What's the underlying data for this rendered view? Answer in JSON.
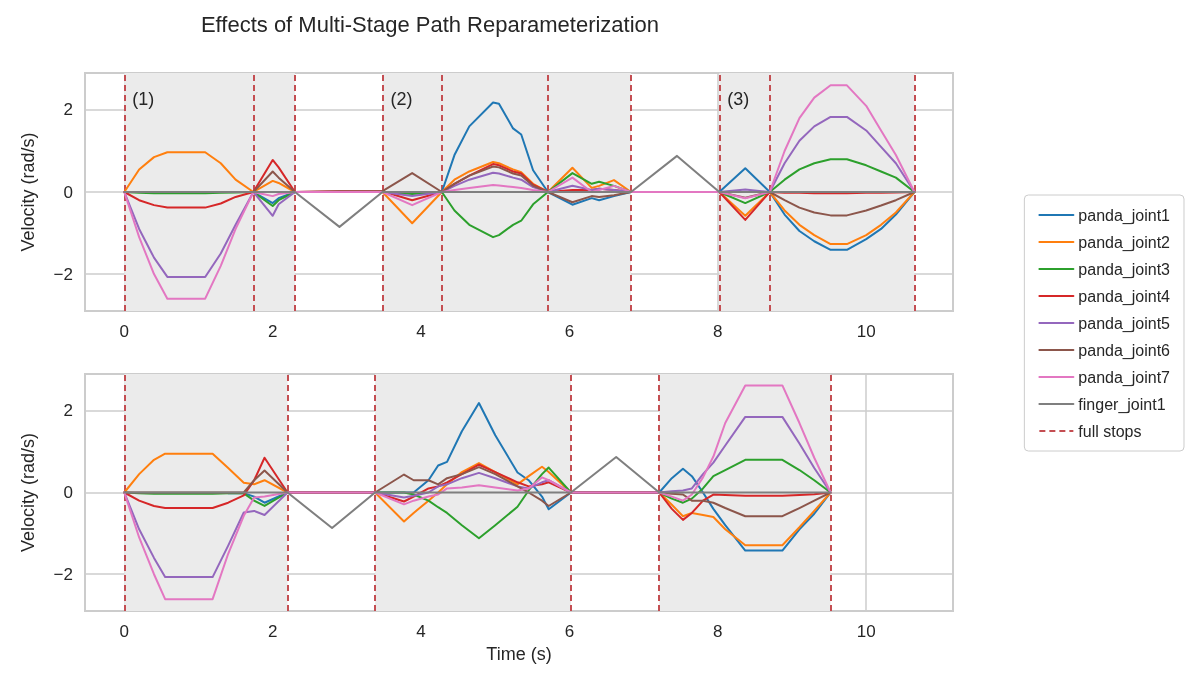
{
  "chart_data": [
    {
      "type": "line",
      "title": "Effects of Multi-Stage Path Reparameterization",
      "ylabel": "Velocity (rad/s)",
      "xlim": [
        -0.53,
        11.17
      ],
      "ylim": [
        -2.9,
        2.9
      ],
      "xticks": [
        0,
        2,
        4,
        6,
        8,
        10
      ],
      "yticks": [
        -2,
        0,
        2
      ],
      "grid": true,
      "legend": "right",
      "line_style": "solid",
      "annotations": [
        "(1)",
        "(2)",
        "(3)"
      ],
      "x": [
        0,
        0.2,
        0.4,
        0.58,
        1.09,
        1.3,
        1.5,
        1.74,
        2.0,
        2.08,
        2.3,
        2.9,
        3.48,
        3.88,
        4.28,
        4.45,
        4.65,
        4.97,
        5.05,
        5.24,
        5.35,
        5.51,
        5.71,
        6.04,
        6.3,
        6.4,
        6.6,
        6.83,
        7.45,
        8.02,
        8.37,
        8.7,
        8.9,
        9.1,
        9.3,
        9.52,
        9.74,
        10.0,
        10.2,
        10.4,
        10.65
      ],
      "series": [
        {
          "name": "panda_joint1",
          "color": "#1f77b4",
          "values": [
            null,
            null,
            null,
            null,
            null,
            null,
            null,
            0,
            -0.27,
            -0.15,
            0,
            0,
            0,
            0,
            0,
            0.9,
            1.6,
            2.18,
            2.15,
            1.55,
            1.4,
            0.53,
            0,
            -0.31,
            -0.15,
            -0.2,
            -0.1,
            0,
            0,
            0,
            0.58,
            0,
            -0.55,
            -0.95,
            -1.2,
            -1.41,
            -1.41,
            -1.15,
            -0.9,
            -0.55,
            0
          ]
        },
        {
          "name": "panda_joint2",
          "color": "#ff7f0e",
          "values": [
            0,
            0.55,
            0.85,
            0.97,
            0.97,
            0.7,
            0.3,
            0,
            0.27,
            0.22,
            0,
            0,
            0,
            -0.76,
            0,
            0.3,
            0.5,
            0.73,
            0.7,
            0.55,
            0.48,
            0.2,
            0,
            0.59,
            0.1,
            0.15,
            0.29,
            0,
            0,
            0,
            -0.58,
            0,
            -0.45,
            -0.8,
            -1.05,
            -1.27,
            -1.27,
            -1.05,
            -0.8,
            -0.5,
            0
          ]
        },
        {
          "name": "panda_joint3",
          "color": "#2ca02c",
          "values": [
            0,
            -0.02,
            -0.03,
            -0.03,
            -0.03,
            -0.02,
            -0.01,
            0,
            -0.34,
            -0.2,
            0,
            0,
            0,
            -0.05,
            0,
            -0.45,
            -0.8,
            -1.1,
            -1.05,
            -0.8,
            -0.7,
            -0.3,
            0,
            0.46,
            0.2,
            0.25,
            0.15,
            0,
            0,
            0,
            -0.27,
            0,
            0.3,
            0.55,
            0.7,
            0.8,
            0.8,
            0.65,
            0.5,
            0.35,
            0
          ]
        },
        {
          "name": "panda_joint4",
          "color": "#d62728",
          "values": [
            0,
            -0.2,
            -0.32,
            -0.38,
            -0.38,
            -0.28,
            -0.12,
            0,
            0.78,
            0.6,
            0,
            0.02,
            0.02,
            -0.2,
            0,
            0.2,
            0.4,
            0.68,
            0.65,
            0.5,
            0.45,
            0.18,
            0,
            0.05,
            0.05,
            0.08,
            0.05,
            0,
            0,
            0,
            -0.68,
            0,
            -0.02,
            -0.02,
            -0.03,
            -0.03,
            -0.03,
            -0.02,
            -0.02,
            -0.01,
            0
          ]
        },
        {
          "name": "panda_joint5",
          "color": "#9467bd",
          "values": [
            0,
            -0.9,
            -1.6,
            -2.07,
            -2.07,
            -1.5,
            -0.8,
            0,
            -0.58,
            -0.3,
            0,
            0,
            0,
            -0.1,
            0,
            0.15,
            0.3,
            0.47,
            0.45,
            0.35,
            0.3,
            0.12,
            0,
            0.15,
            0.05,
            0.08,
            0.05,
            0,
            0,
            0,
            0.06,
            0,
            0.7,
            1.25,
            1.6,
            1.83,
            1.83,
            1.5,
            1.1,
            0.7,
            0
          ]
        },
        {
          "name": "panda_joint6",
          "color": "#8c564b",
          "values": [
            0,
            0,
            0,
            0,
            0,
            0,
            0,
            0,
            0.5,
            0.35,
            0,
            0.02,
            0.02,
            0.46,
            0,
            0.2,
            0.4,
            0.62,
            0.6,
            0.45,
            0.4,
            0.15,
            0,
            -0.25,
            -0.1,
            -0.12,
            -0.08,
            0,
            0,
            0,
            -0.14,
            0,
            -0.2,
            -0.38,
            -0.5,
            -0.57,
            -0.57,
            -0.45,
            -0.33,
            -0.2,
            0
          ]
        },
        {
          "name": "panda_joint7",
          "color": "#e377c2",
          "values": [
            0,
            -1.1,
            -2.0,
            -2.6,
            -2.6,
            -1.8,
            -0.9,
            0,
            -0.1,
            -0.05,
            0,
            0,
            0,
            -0.32,
            0,
            0.05,
            0.1,
            0.17,
            0.16,
            0.12,
            0.1,
            0.05,
            0,
            0.35,
            0,
            0.05,
            0.15,
            0,
            0,
            0,
            -0.15,
            0,
            1.0,
            1.8,
            2.3,
            2.6,
            2.6,
            2.1,
            1.5,
            0.9,
            0
          ]
        },
        {
          "name": "finger_joint1",
          "color": "#7f7f7f",
          "values": [
            0,
            0,
            0,
            0,
            0,
            0,
            0,
            0,
            0,
            0,
            0,
            -0.85,
            0,
            0,
            0,
            0,
            0,
            0,
            0,
            0,
            0,
            0,
            0,
            0,
            0,
            0,
            0,
            0,
            0.88,
            0,
            0,
            0,
            0,
            0,
            0,
            0,
            0,
            0,
            0,
            0,
            0
          ]
        }
      ],
      "ref_lines": [
        {
          "axis": "x",
          "value": 0,
          "label": "full stops",
          "color": "#c44e52",
          "line_style": "dashed"
        },
        {
          "axis": "x",
          "value": 1.74,
          "color": "#c44e52",
          "line_style": "dashed"
        },
        {
          "axis": "x",
          "value": 2.3,
          "color": "#c44e52",
          "line_style": "dashed"
        },
        {
          "axis": "x",
          "value": 3.48,
          "color": "#c44e52",
          "line_style": "dashed"
        },
        {
          "axis": "x",
          "value": 4.28,
          "color": "#c44e52",
          "line_style": "dashed"
        },
        {
          "axis": "x",
          "value": 5.71,
          "color": "#c44e52",
          "line_style": "dashed"
        },
        {
          "axis": "x",
          "value": 6.83,
          "color": "#c44e52",
          "line_style": "dashed"
        },
        {
          "axis": "x",
          "value": 8.02,
          "color": "#c44e52",
          "line_style": "dashed"
        },
        {
          "axis": "x",
          "value": 8.7,
          "color": "#c44e52",
          "line_style": "dashed"
        },
        {
          "axis": "x",
          "value": 10.65,
          "color": "#c44e52",
          "line_style": "dashed"
        }
      ],
      "bands": [
        {
          "axis": "x",
          "from": 0,
          "to": 2.3,
          "color": "#ebebeb"
        },
        {
          "axis": "x",
          "from": 3.48,
          "to": 6.83,
          "color": "#ebebeb"
        },
        {
          "axis": "x",
          "from": 8.02,
          "to": 10.65,
          "color": "#ebebeb"
        }
      ]
    },
    {
      "type": "line",
      "xlabel": "Time (s)",
      "ylabel": "Velocity (rad/s)",
      "xlim": [
        -0.53,
        11.17
      ],
      "ylim": [
        -2.9,
        2.9
      ],
      "xticks": [
        0,
        2,
        4,
        6,
        8,
        10
      ],
      "yticks": [
        -2,
        0,
        2
      ],
      "grid": true,
      "line_style": "solid",
      "x": [
        0,
        0.2,
        0.4,
        0.55,
        1.19,
        1.4,
        1.61,
        1.75,
        1.89,
        2.2,
        2.8,
        3.38,
        3.77,
        3.9,
        4.1,
        4.23,
        4.35,
        4.55,
        4.78,
        5.0,
        5.3,
        5.45,
        5.63,
        5.72,
        6.02,
        6.63,
        7.21,
        7.38,
        7.53,
        7.65,
        7.8,
        7.94,
        8.1,
        8.37,
        8.87,
        9.1,
        9.3,
        9.52
      ],
      "series": [
        {
          "color": "#1f77b4",
          "values": [
            null,
            null,
            null,
            null,
            null,
            -0.02,
            -0.02,
            -0.1,
            -0.25,
            0,
            0,
            0,
            0,
            0,
            0.3,
            0.66,
            0.75,
            1.5,
            2.19,
            1.4,
            0.49,
            0.3,
            -0.1,
            -0.41,
            0,
            0,
            0,
            0.35,
            0.58,
            0.4,
            0,
            -0.4,
            -0.8,
            -1.42,
            -1.42,
            -0.9,
            -0.52,
            0
          ]
        },
        {
          "color": "#ff7f0e",
          "values": [
            0,
            0.45,
            0.8,
            0.95,
            0.95,
            0.6,
            0.24,
            0.2,
            0.3,
            0,
            0,
            0,
            -0.71,
            -0.5,
            -0.2,
            0,
            0.2,
            0.5,
            0.72,
            0.5,
            0.2,
            0.4,
            0.63,
            0.5,
            0,
            0,
            0,
            -0.3,
            -0.58,
            -0.5,
            -0.55,
            -0.6,
            -0.9,
            -1.29,
            -1.29,
            -0.85,
            -0.45,
            0
          ]
        },
        {
          "color": "#2ca02c",
          "values": [
            0,
            -0.02,
            -0.03,
            -0.03,
            -0.03,
            -0.02,
            -0.02,
            -0.2,
            -0.33,
            0,
            0,
            0,
            0,
            -0.05,
            -0.2,
            -0.36,
            -0.5,
            -0.8,
            -1.12,
            -0.8,
            -0.35,
            0.05,
            0.45,
            0.61,
            0,
            0,
            0,
            -0.15,
            -0.25,
            -0.15,
            0.1,
            0.4,
            0.55,
            0.8,
            0.8,
            0.55,
            0.3,
            0
          ]
        },
        {
          "color": "#d62728",
          "values": [
            0,
            -0.2,
            -0.33,
            -0.38,
            -0.38,
            -0.25,
            -0.07,
            0.3,
            0.85,
            0,
            0,
            0,
            -0.22,
            -0.1,
            0.1,
            0.15,
            0.25,
            0.45,
            0.68,
            0.5,
            0.25,
            0.15,
            0.2,
            0.25,
            0,
            0,
            0,
            -0.4,
            -0.67,
            -0.5,
            -0.2,
            -0.05,
            -0.06,
            -0.08,
            -0.08,
            -0.06,
            -0.04,
            0
          ]
        },
        {
          "color": "#9467bd",
          "values": [
            0,
            -0.9,
            -1.6,
            -2.07,
            -2.07,
            -1.3,
            -0.49,
            -0.45,
            -0.55,
            0,
            0,
            0,
            -0.12,
            -0.08,
            0,
            0.15,
            0.2,
            0.35,
            0.48,
            0.35,
            0.15,
            0.1,
            0.25,
            0.3,
            0,
            0,
            0,
            0.03,
            0.05,
            0.1,
            0.45,
            0.73,
            1.15,
            1.85,
            1.85,
            1.2,
            0.6,
            0
          ]
        },
        {
          "color": "#8c564b",
          "values": [
            0,
            0,
            0,
            0,
            0,
            0,
            0,
            0.3,
            0.54,
            0,
            0,
            0,
            0.44,
            0.3,
            0.3,
            0.2,
            0.35,
            0.45,
            0.62,
            0.45,
            0.15,
            0,
            -0.2,
            -0.33,
            0,
            0,
            0,
            -0.03,
            -0.05,
            -0.2,
            -0.2,
            -0.25,
            -0.38,
            -0.58,
            -0.58,
            -0.38,
            -0.2,
            0
          ]
        },
        {
          "color": "#e377c2",
          "values": [
            0,
            -1.1,
            -2.0,
            -2.61,
            -2.61,
            -1.5,
            -0.57,
            -0.12,
            -0.1,
            0,
            0,
            0,
            -0.29,
            -0.2,
            -0.1,
            -0.05,
            0.1,
            0.12,
            0.18,
            0.12,
            0.05,
            0.1,
            0.37,
            0.3,
            0,
            0,
            0,
            -0.1,
            -0.2,
            -0.05,
            0.37,
            0.88,
            1.7,
            2.62,
            2.62,
            1.7,
            0.85,
            0
          ]
        },
        {
          "color": "#7f7f7f",
          "values": [
            0,
            0,
            0,
            0,
            0,
            0,
            0,
            0,
            0,
            0,
            -0.87,
            0,
            0,
            0,
            0,
            0,
            0,
            0,
            0,
            0,
            0,
            0,
            0,
            0,
            0,
            0.87,
            0,
            0,
            0,
            0,
            0,
            0,
            0,
            0,
            0,
            0,
            0,
            0
          ]
        }
      ],
      "ref_lines": [
        {
          "axis": "x",
          "value": 0,
          "color": "#c44e52",
          "line_style": "dashed"
        },
        {
          "axis": "x",
          "value": 2.2,
          "color": "#c44e52",
          "line_style": "dashed"
        },
        {
          "axis": "x",
          "value": 3.38,
          "color": "#c44e52",
          "line_style": "dashed"
        },
        {
          "axis": "x",
          "value": 6.02,
          "color": "#c44e52",
          "line_style": "dashed"
        },
        {
          "axis": "x",
          "value": 7.21,
          "color": "#c44e52",
          "line_style": "dashed"
        },
        {
          "axis": "x",
          "value": 9.52,
          "color": "#c44e52",
          "line_style": "dashed"
        }
      ],
      "bands": [
        {
          "axis": "x",
          "from": 0,
          "to": 2.2,
          "color": "#ebebeb"
        },
        {
          "axis": "x",
          "from": 3.38,
          "to": 6.02,
          "color": "#ebebeb"
        },
        {
          "axis": "x",
          "from": 7.21,
          "to": 9.52,
          "color": "#ebebeb"
        }
      ]
    }
  ]
}
